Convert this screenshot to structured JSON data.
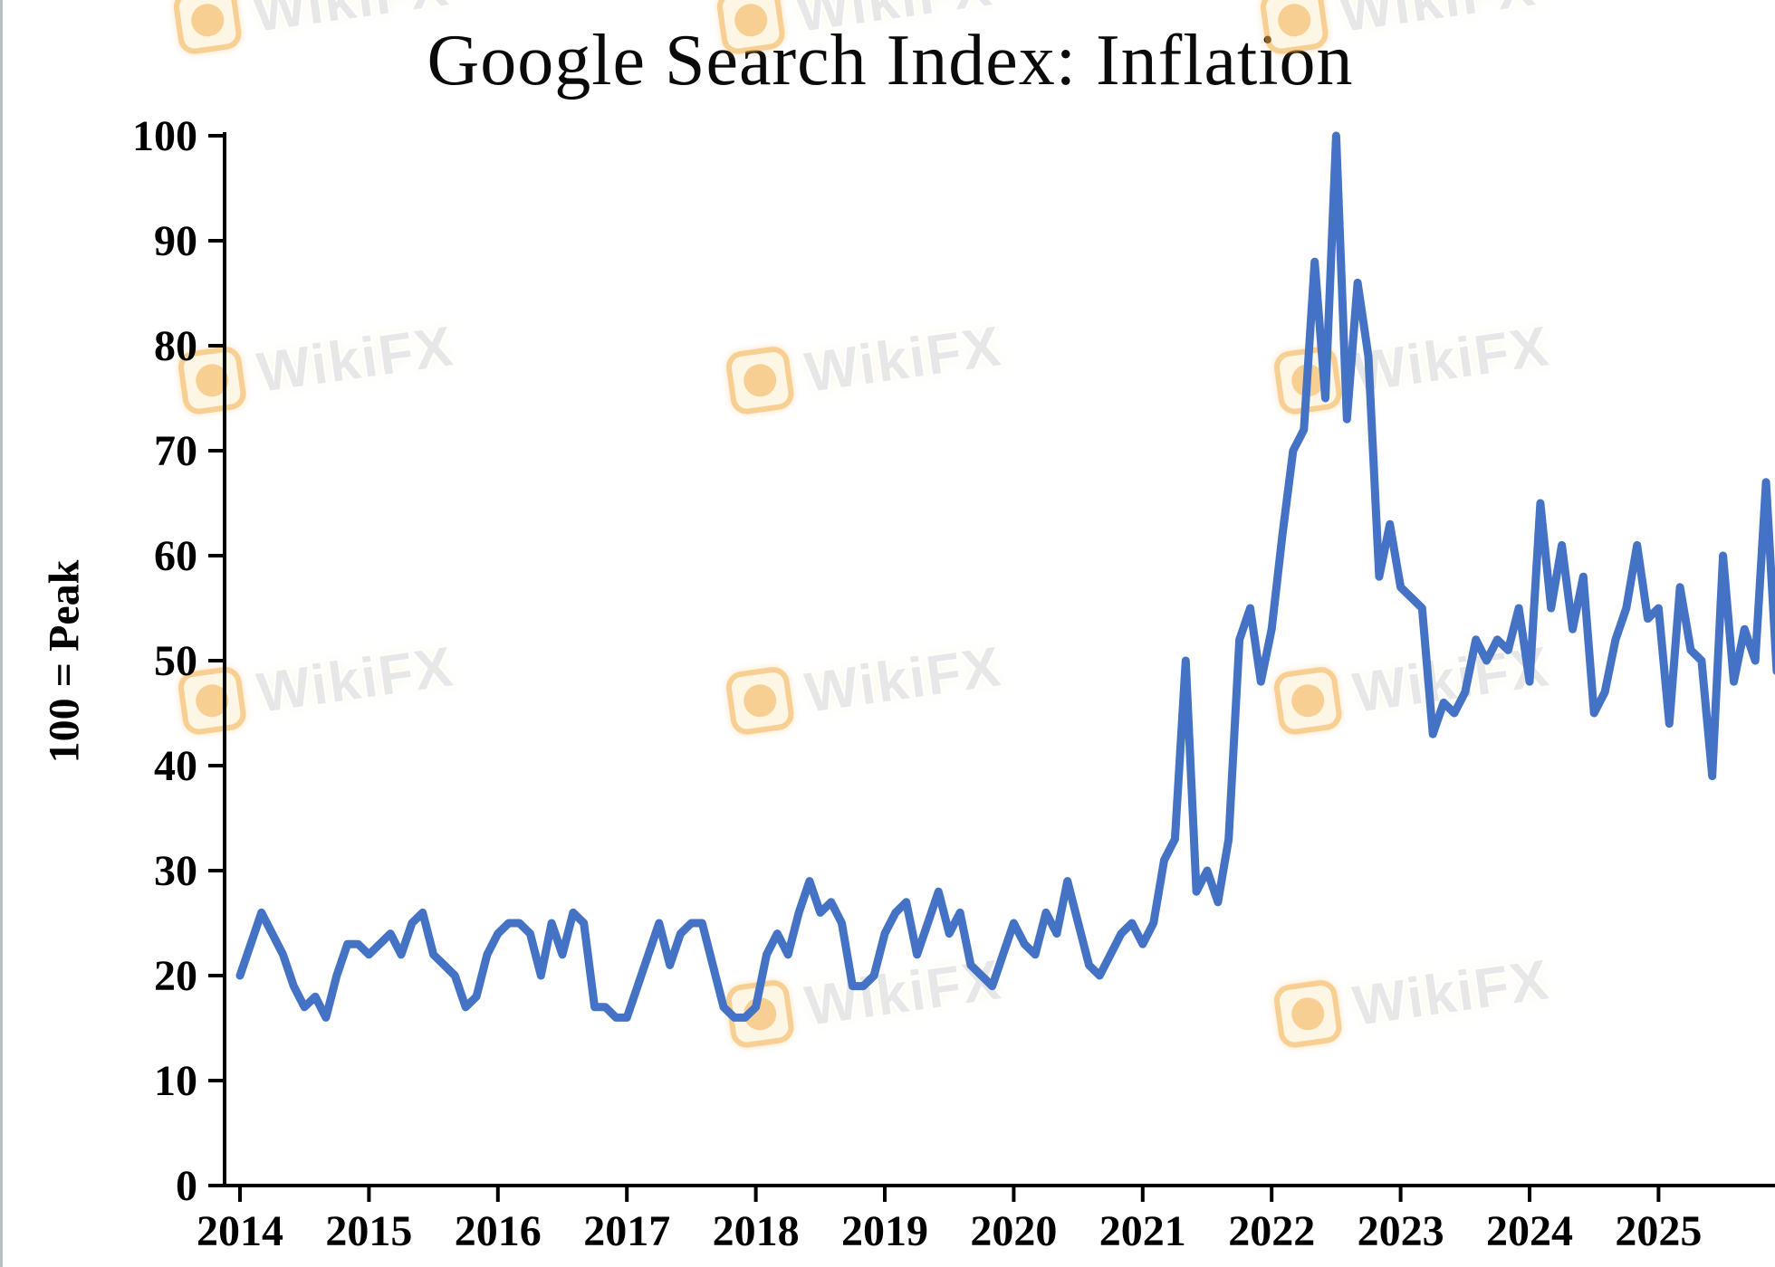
{
  "page": {
    "background": "#ffffff"
  },
  "watermark": {
    "text": "WikiFX",
    "icon": "wikifx-logo-icon",
    "accent_color": "#f3a93c",
    "text_color": "#d4d4d4"
  },
  "chart_data": {
    "type": "line",
    "title": "Google Search Index: Inflation",
    "xlabel": "",
    "ylabel": "100 = Peak",
    "ylim": [
      0,
      100
    ],
    "yticks": [
      0,
      10,
      20,
      30,
      40,
      50,
      60,
      70,
      80,
      90,
      100
    ],
    "xticks": [
      2014,
      2015,
      2016,
      2017,
      2018,
      2019,
      2020,
      2021,
      2022,
      2023,
      2024,
      2025
    ],
    "grid": false,
    "legend": "none",
    "line_color": "#4472c4",
    "axis_color": "#000000",
    "x_start_year": 2014,
    "points_per_year": 12,
    "series": [
      {
        "name": "Google Search Index: Inflation",
        "frequency": "monthly",
        "start": "2014-01",
        "values": [
          20,
          23,
          26,
          24,
          22,
          19,
          17,
          18,
          16,
          20,
          23,
          23,
          22,
          23,
          24,
          22,
          25,
          26,
          22,
          21,
          20,
          17,
          18,
          22,
          24,
          25,
          25,
          24,
          20,
          25,
          22,
          26,
          25,
          17,
          17,
          16,
          16,
          19,
          22,
          25,
          21,
          24,
          25,
          25,
          21,
          17,
          16,
          16,
          17,
          22,
          24,
          22,
          26,
          29,
          26,
          27,
          25,
          19,
          19,
          20,
          24,
          26,
          27,
          22,
          25,
          28,
          24,
          26,
          21,
          20,
          19,
          22,
          25,
          23,
          22,
          26,
          24,
          29,
          25,
          21,
          20,
          22,
          24,
          25,
          23,
          25,
          31,
          33,
          50,
          28,
          30,
          27,
          33,
          52,
          55,
          48,
          53,
          62,
          70,
          72,
          88,
          75,
          100,
          73,
          86,
          79,
          58,
          63,
          57,
          56,
          55,
          43,
          46,
          45,
          47,
          52,
          50,
          52,
          51,
          55,
          48,
          65,
          55,
          61,
          53,
          58,
          45,
          47,
          52,
          55,
          61,
          54,
          55,
          44,
          57,
          51,
          50,
          39,
          60,
          48,
          53,
          50,
          67,
          49
        ]
      }
    ]
  }
}
